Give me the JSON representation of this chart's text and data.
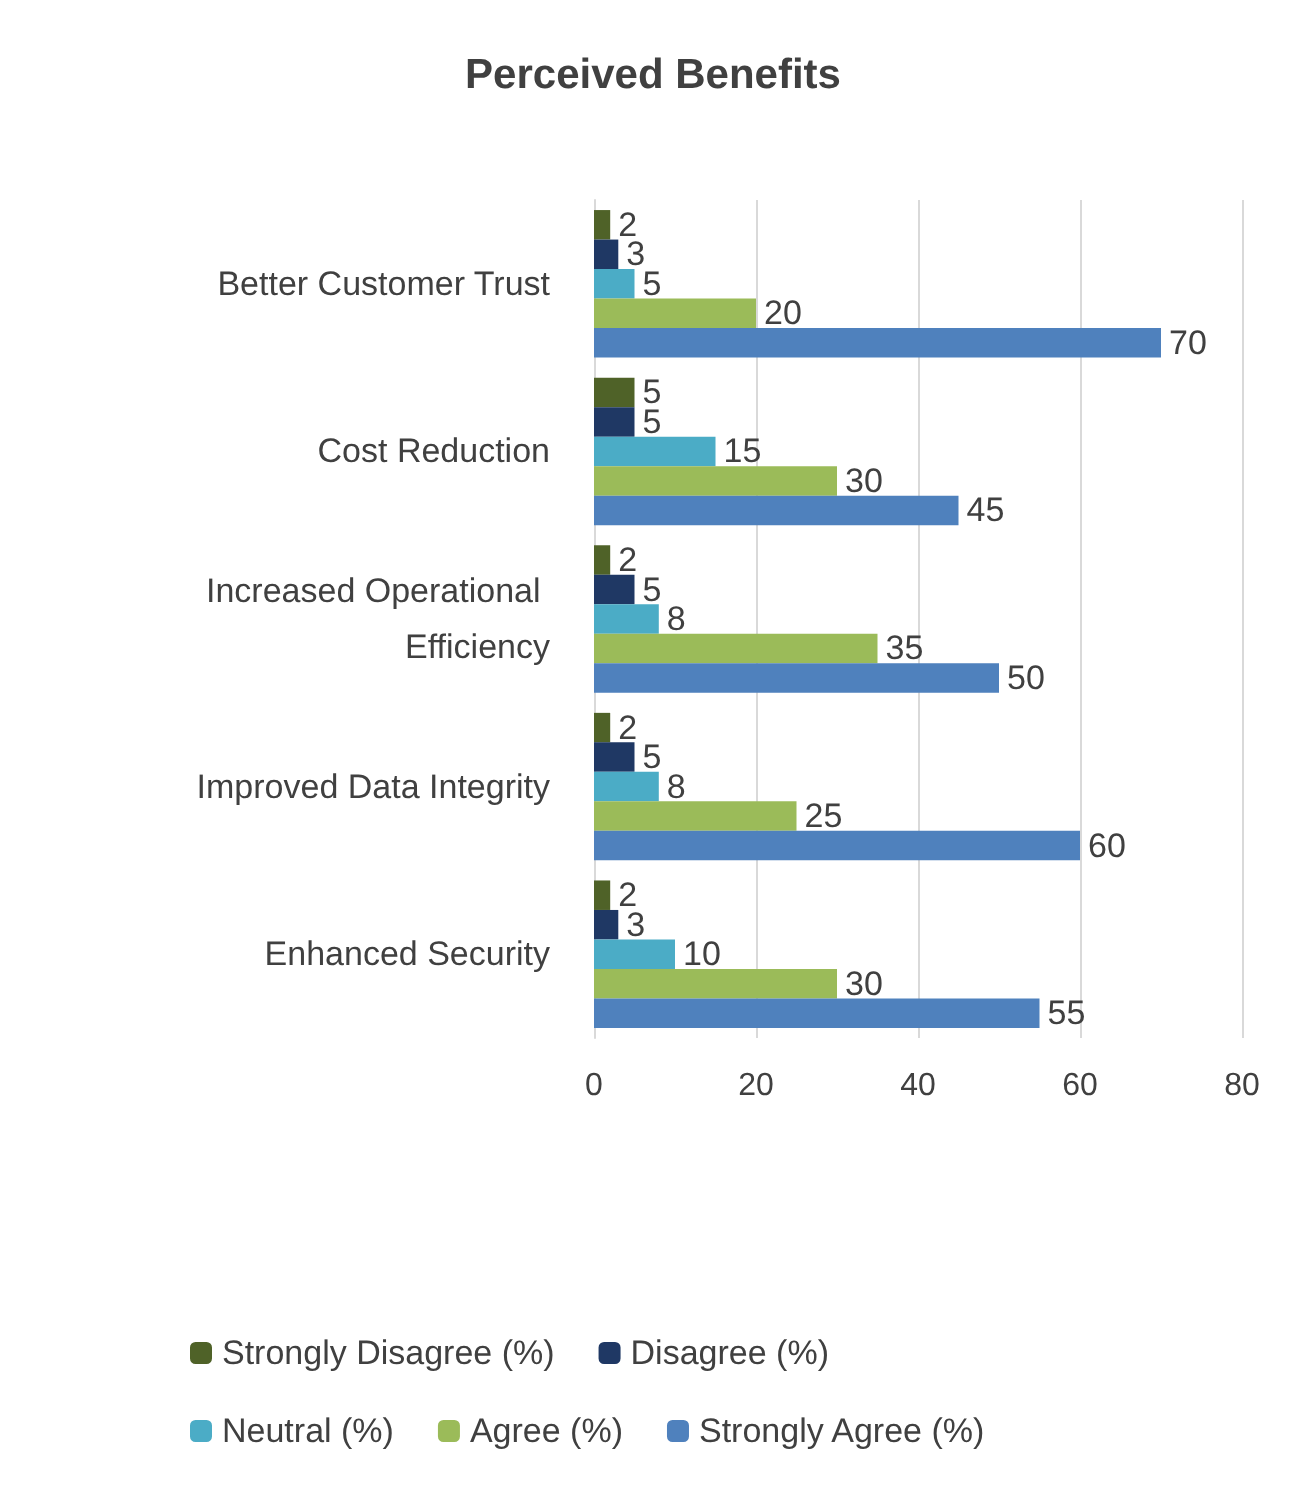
{
  "chart_data": {
    "type": "bar",
    "orientation": "horizontal",
    "title": "Perceived Benefits",
    "categories": [
      "Better Customer Trust",
      "Cost Reduction",
      "Increased Operational Efficiency",
      "Improved Data Integrity",
      "Enhanced Security"
    ],
    "series": [
      {
        "name": "Strongly Disagree (%)",
        "color": "#4f6228",
        "values": [
          2,
          5,
          2,
          2,
          2
        ]
      },
      {
        "name": "Disagree (%)",
        "color": "#1f3864",
        "values": [
          3,
          5,
          5,
          5,
          3
        ]
      },
      {
        "name": "Neutral (%)",
        "color": "#4bacc6",
        "values": [
          5,
          15,
          8,
          8,
          10
        ]
      },
      {
        "name": "Agree (%)",
        "color": "#9bbb59",
        "values": [
          20,
          30,
          35,
          25,
          30
        ]
      },
      {
        "name": "Strongly Agree (%)",
        "color": "#4f81bd",
        "values": [
          70,
          45,
          50,
          60,
          55
        ]
      }
    ],
    "xlim": [
      0,
      80
    ],
    "xticks": [
      0,
      20,
      40,
      60,
      80
    ],
    "grid": "x",
    "legend": "bottom",
    "data_labels": true
  }
}
